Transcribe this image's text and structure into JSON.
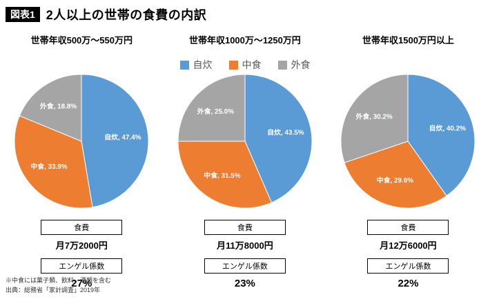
{
  "header": {
    "tag": "図表1",
    "title": "2人以上の世帯の食費の内訳"
  },
  "legend": [
    {
      "label": "自炊",
      "color": "#5B9BD5"
    },
    {
      "label": "中食",
      "color": "#ED7D31"
    },
    {
      "label": "外食",
      "color": "#A5A5A5"
    }
  ],
  "chart_data": [
    {
      "type": "pie",
      "title": "世帯年収500万〜550万円",
      "labels": [
        "自炊",
        "中食",
        "外食"
      ],
      "values": [
        47.4,
        33.9,
        18.8
      ],
      "colors": [
        "#5B9BD5",
        "#ED7D31",
        "#A5A5A5"
      ],
      "data_labels": [
        "自炊, 47.4%",
        "中食, 33.9%",
        "外食, 18.8%"
      ],
      "legend_position": "top-center",
      "footer": {
        "food_label": "食費",
        "food_value": "月7万2000円",
        "engel_label": "エンゲル係数",
        "engel_value": "27%"
      }
    },
    {
      "type": "pie",
      "title": "世帯年収1000万〜1250万円",
      "labels": [
        "自炊",
        "中食",
        "外食"
      ],
      "values": [
        43.5,
        31.5,
        25.0
      ],
      "colors": [
        "#5B9BD5",
        "#ED7D31",
        "#A5A5A5"
      ],
      "data_labels": [
        "自炊, 43.5%",
        "中食, 31.5%",
        "外食, 25.0%"
      ],
      "legend_position": "top-center",
      "footer": {
        "food_label": "食費",
        "food_value": "月11万8000円",
        "engel_label": "エンゲル係数",
        "engel_value": "23%"
      }
    },
    {
      "type": "pie",
      "title": "世帯年収1500万円以上",
      "labels": [
        "自炊",
        "中食",
        "外食"
      ],
      "values": [
        40.2,
        29.6,
        30.2
      ],
      "colors": [
        "#5B9BD5",
        "#ED7D31",
        "#A5A5A5"
      ],
      "data_labels": [
        "自炊, 40.2%",
        "中食, 29.6%",
        "外食, 30.2%"
      ],
      "legend_position": "top-center",
      "footer": {
        "food_label": "食費",
        "food_value": "月12万6000円",
        "engel_label": "エンゲル係数",
        "engel_value": "22%"
      }
    }
  ],
  "footnotes": [
    "※中食には菓子類、飲料、酒類を含む",
    "出典：総務省「家計調査」2019年"
  ]
}
